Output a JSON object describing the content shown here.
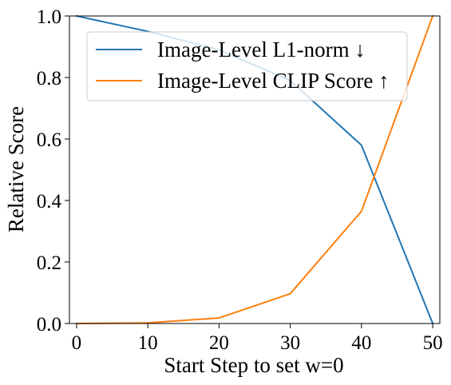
{
  "chart_data": {
    "type": "line",
    "xlabel": "Start Step to set w=0",
    "ylabel": "Relative Score",
    "x": [
      0,
      10,
      20,
      30,
      40,
      50
    ],
    "xlim": [
      -1,
      51
    ],
    "ylim": [
      0,
      1
    ],
    "xticks": [
      0,
      10,
      20,
      30,
      40,
      50
    ],
    "yticks": [
      0.0,
      0.2,
      0.4,
      0.6,
      0.8,
      1.0
    ],
    "xtick_labels": [
      "0",
      "10",
      "20",
      "30",
      "40",
      "50"
    ],
    "ytick_labels": [
      "0.0",
      "0.2",
      "0.4",
      "0.6",
      "0.8",
      "1.0"
    ],
    "grid": false,
    "legend_position": "top-right",
    "series": [
      {
        "name": "Image-Level L1-norm ↓",
        "color": "#1f77b4",
        "values": [
          1.0,
          0.95,
          0.89,
          0.79,
          0.58,
          0.0
        ]
      },
      {
        "name": "Image-Level CLIP Score ↑",
        "color": "#ff7f0e",
        "values": [
          0.0,
          0.002,
          0.018,
          0.097,
          0.365,
          1.0
        ]
      }
    ]
  }
}
